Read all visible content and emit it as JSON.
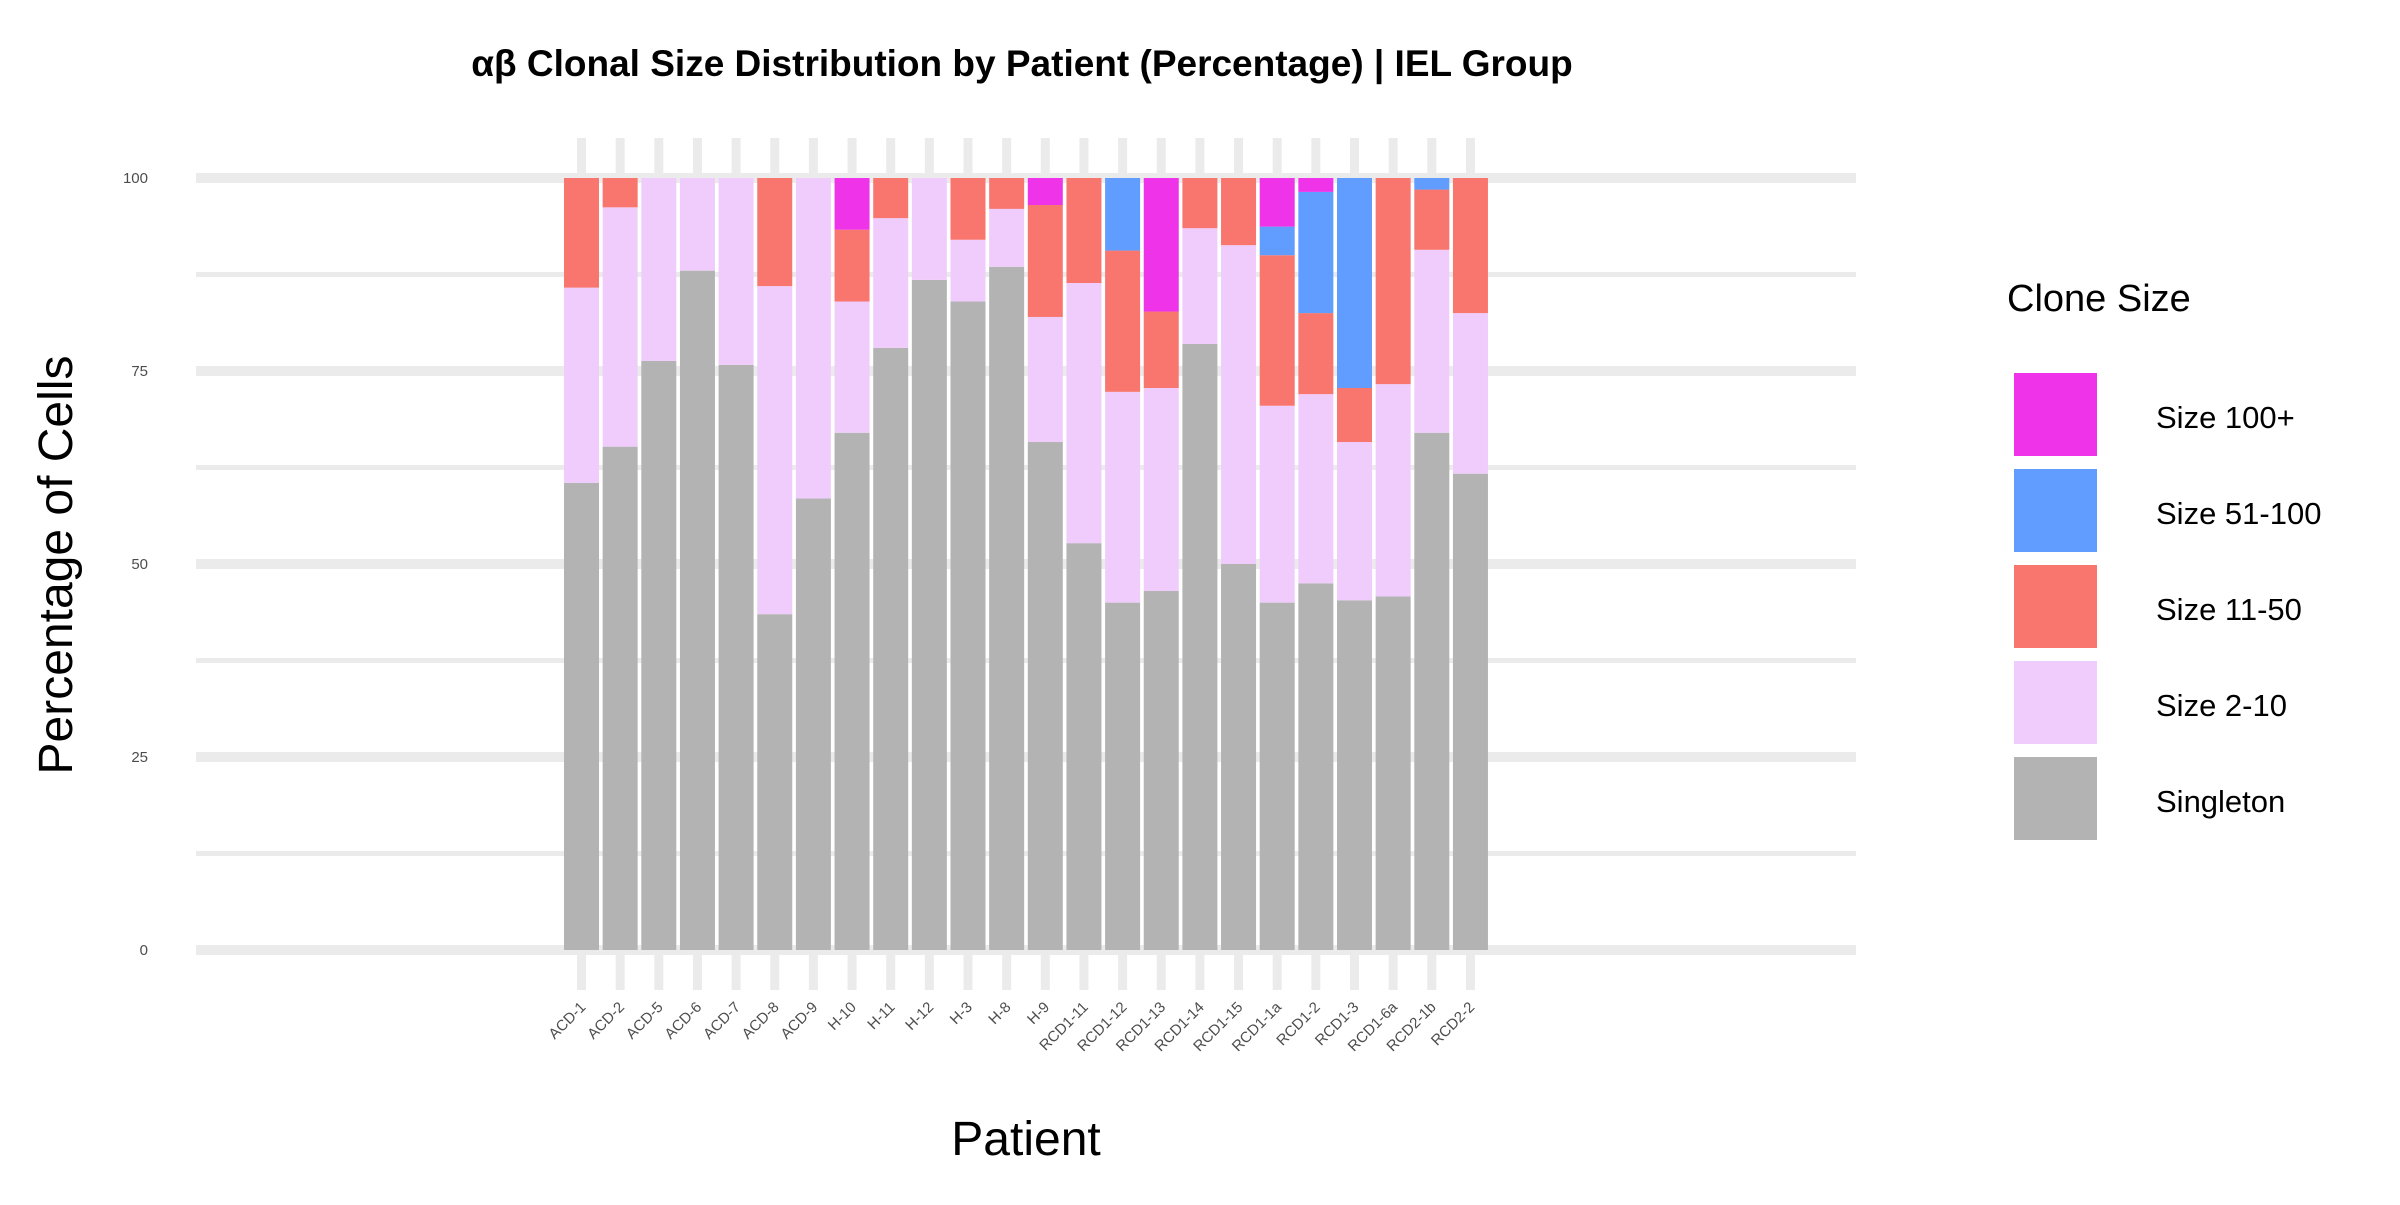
{
  "chart_data": {
    "type": "bar",
    "stacked": true,
    "title": "αβ Clonal Size Distribution by Patient (Percentage) | IEL Group",
    "xlabel": "Patient",
    "ylabel": "Percentage of Cells",
    "ylim": [
      0,
      100
    ],
    "yticks": [
      0,
      25,
      50,
      75,
      100
    ],
    "grid": true,
    "legend_position": "right",
    "legend_title": "Clone Size",
    "legend_order": [
      "Size 100+",
      "Size 51-100",
      "Size 11-50",
      "Size 2-10",
      "Singleton"
    ],
    "colors": {
      "Singleton": "#b3b3b3",
      "Size 2-10": "#f0ccfc",
      "Size 11-50": "#f8766d",
      "Size 51-100": "#619cff",
      "Size 100+": "#ee33e8"
    },
    "categories": [
      "ACD-1",
      "ACD-2",
      "ACD-5",
      "ACD-6",
      "ACD-7",
      "ACD-8",
      "ACD-9",
      "H-10",
      "H-11",
      "H-12",
      "H-3",
      "H-8",
      "H-9",
      "RCD1-11",
      "RCD1-12",
      "RCD1-13",
      "RCD1-14",
      "RCD1-15",
      "RCD1-1a",
      "RCD1-2",
      "RCD1-3",
      "RCD1-6a",
      "RCD2-1b",
      "RCD2-2"
    ],
    "series": [
      {
        "name": "Singleton",
        "values": [
          60.5,
          65.2,
          76.3,
          88.0,
          75.8,
          43.5,
          58.5,
          67.0,
          78.0,
          86.8,
          84.0,
          88.5,
          65.8,
          52.7,
          45.0,
          46.5,
          78.5,
          50.0,
          45.0,
          47.5,
          45.3,
          45.8,
          67.0,
          61.7
        ]
      },
      {
        "name": "Size 2-10",
        "values": [
          25.3,
          31.0,
          23.7,
          12.0,
          24.2,
          42.5,
          41.5,
          17.0,
          16.8,
          13.2,
          8.0,
          7.5,
          16.2,
          33.7,
          27.3,
          26.3,
          15.0,
          41.3,
          25.5,
          24.5,
          20.5,
          27.5,
          23.7,
          20.8
        ]
      },
      {
        "name": "Size 11-50",
        "values": [
          14.2,
          3.8,
          0,
          0,
          0,
          14.0,
          0,
          9.3,
          5.2,
          0,
          8.0,
          4.0,
          14.5,
          13.6,
          18.3,
          9.9,
          6.5,
          8.7,
          19.5,
          10.5,
          7.0,
          26.7,
          7.8,
          17.5
        ]
      },
      {
        "name": "Size 51-100",
        "values": [
          0,
          0,
          0,
          0,
          0,
          0,
          0,
          0,
          0,
          0,
          0,
          0,
          0,
          0,
          9.4,
          0,
          0,
          0,
          3.7,
          15.7,
          27.2,
          0,
          1.5,
          0
        ]
      },
      {
        "name": "Size 100+",
        "values": [
          0,
          0,
          0,
          0,
          0,
          0,
          0,
          6.7,
          0,
          0,
          0,
          0,
          3.5,
          0,
          0,
          17.3,
          0,
          0,
          6.3,
          1.8,
          0,
          0,
          0,
          0
        ]
      }
    ]
  }
}
